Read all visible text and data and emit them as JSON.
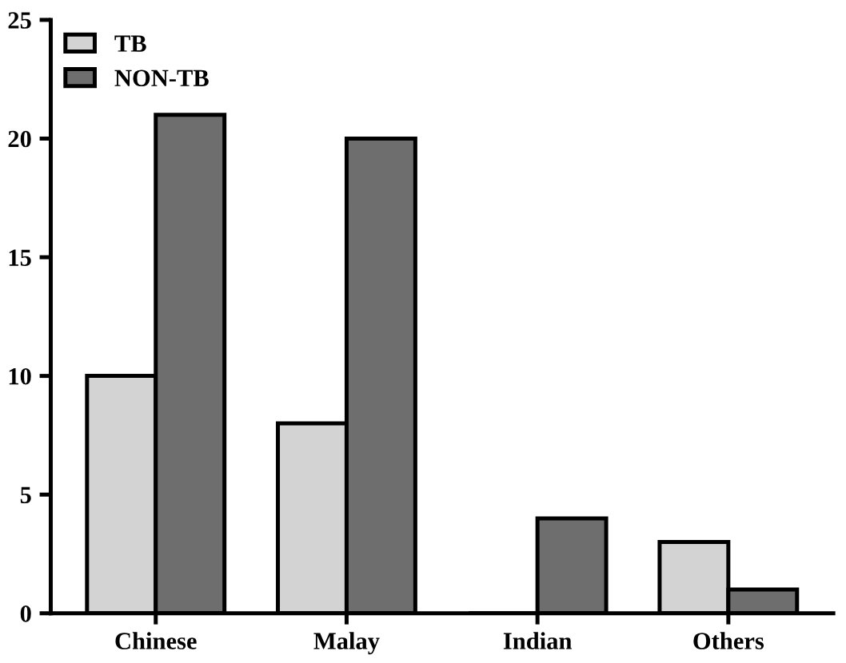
{
  "chart_data": {
    "type": "bar",
    "categories": [
      "Chinese",
      "Malay",
      "Indian",
      "Others"
    ],
    "series": [
      {
        "name": "TB",
        "color": "#d3d3d3",
        "values": [
          10,
          8,
          0,
          3
        ]
      },
      {
        "name": "NON-TB",
        "color": "#6e6e6e",
        "values": [
          21,
          20,
          4,
          1
        ]
      }
    ],
    "ylim": [
      0,
      25
    ],
    "yticks": [
      0,
      5,
      10,
      15,
      20,
      25
    ],
    "grid": false,
    "legend": "top left"
  }
}
